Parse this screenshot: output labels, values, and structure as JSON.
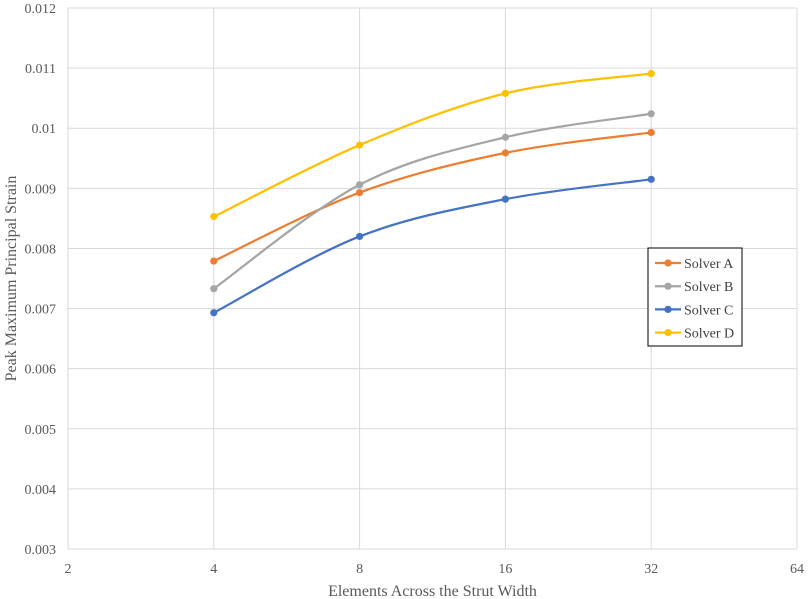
{
  "chart_data": {
    "type": "line",
    "xlabel": "Elements Across the Strut Width",
    "ylabel": "Peak Maximum Principal Strain",
    "x_scale": "log2",
    "xlim": [
      2,
      64
    ],
    "ylim": [
      0.003,
      0.012
    ],
    "x_ticks": [
      "2",
      "4",
      "8",
      "16",
      "32",
      "64"
    ],
    "y_ticks": [
      "0.003",
      "0.004",
      "0.005",
      "0.006",
      "0.007",
      "0.008",
      "0.009",
      "0.01",
      "0.011",
      "0.012"
    ],
    "grid": "vertical and horizontal major gridlines",
    "legend_position": "right",
    "x": [
      4,
      8,
      16,
      32
    ],
    "series": [
      {
        "name": "Solver A",
        "color": "#ED7D31",
        "values": [
          0.00779,
          0.00893,
          0.00959,
          0.00993
        ]
      },
      {
        "name": "Solver B",
        "color": "#A5A5A5",
        "values": [
          0.00733,
          0.00906,
          0.00985,
          0.01024
        ]
      },
      {
        "name": "Solver C",
        "color": "#4472C4",
        "values": [
          0.00693,
          0.0082,
          0.00882,
          0.00915
        ]
      },
      {
        "name": "Solver D",
        "color": "#FFC000",
        "values": [
          0.00853,
          0.00972,
          0.01058,
          0.01091
        ]
      }
    ]
  }
}
